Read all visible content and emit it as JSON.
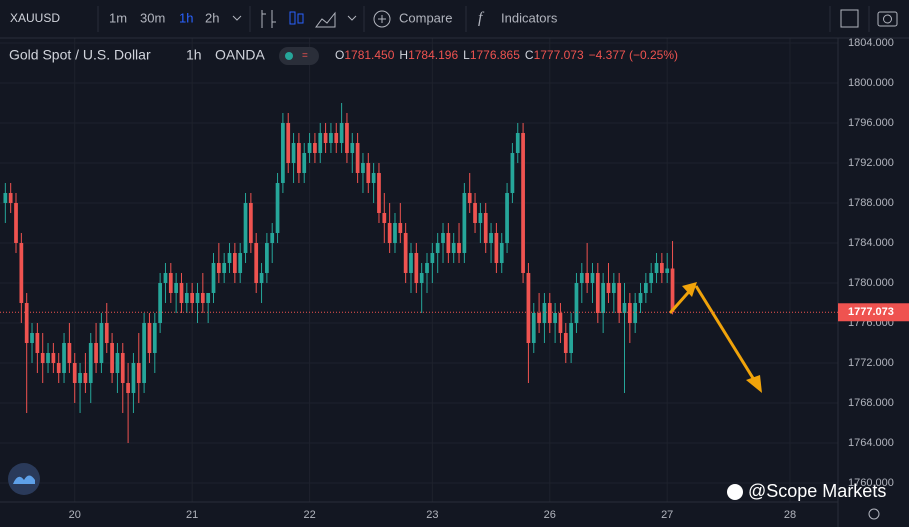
{
  "toolbar": {
    "symbol": "XAUUSD",
    "intervals": [
      "1m",
      "30m",
      "1h",
      "2h"
    ],
    "compare": "Compare",
    "indicators": "Indicators"
  },
  "legend": {
    "title": "Gold Spot / U.S. Dollar",
    "interval": "1h",
    "source": "OANDA",
    "ohlc_letters": [
      "O",
      "H",
      "L",
      "C"
    ],
    "ohlc_values": [
      "1781.450",
      "1784.196",
      "1776.865",
      "1777.073"
    ],
    "change": "−4.377 (−0.25%)"
  },
  "watermark": "@Scope Markets",
  "chart_data": {
    "type": "candlestick",
    "up_color": "#26a69a",
    "down_color": "#ef5350",
    "xlim": [
      -1,
      156
    ],
    "xticks": [
      {
        "value": 13,
        "label": "20"
      },
      {
        "value": 35,
        "label": "21"
      },
      {
        "value": 57,
        "label": "22"
      },
      {
        "value": 80,
        "label": "23"
      },
      {
        "value": 102,
        "label": "26"
      },
      {
        "value": 124,
        "label": "27"
      },
      {
        "value": 147,
        "label": "28"
      }
    ],
    "ylim": [
      1758.1,
      1804.5
    ],
    "yticks": [
      {
        "value": 1760,
        "label": "1760.000"
      },
      {
        "value": 1764,
        "label": "1764.000"
      },
      {
        "value": 1768,
        "label": "1768.000"
      },
      {
        "value": 1772,
        "label": "1772.000"
      },
      {
        "value": 1776,
        "label": "1776.000"
      },
      {
        "value": 1780,
        "label": "1780.000"
      },
      {
        "value": 1784,
        "label": "1784.000"
      },
      {
        "value": 1788,
        "label": "1788.000"
      },
      {
        "value": 1792,
        "label": "1792.000"
      },
      {
        "value": 1796,
        "label": "1796.000"
      },
      {
        "value": 1800,
        "label": "1800.000"
      },
      {
        "value": 1804,
        "label": "1804.000"
      }
    ],
    "grid": true,
    "last_price": {
      "value": 1777.073,
      "label": "1777.073"
    },
    "candles": [
      [
        1788,
        1790,
        1786,
        1789
      ],
      [
        1789,
        1790,
        1787,
        1788
      ],
      [
        1788,
        1789,
        1783,
        1784
      ],
      [
        1784,
        1785,
        1776,
        1778
      ],
      [
        1778,
        1779,
        1767,
        1774
      ],
      [
        1774,
        1776,
        1772,
        1775
      ],
      [
        1775,
        1776,
        1771,
        1773
      ],
      [
        1773,
        1775,
        1770,
        1772
      ],
      [
        1772,
        1774,
        1771,
        1773
      ],
      [
        1773,
        1774,
        1771,
        1772
      ],
      [
        1772,
        1773,
        1770,
        1771
      ],
      [
        1771,
        1775,
        1770,
        1774
      ],
      [
        1774,
        1776,
        1771,
        1772
      ],
      [
        1772,
        1773,
        1768,
        1770
      ],
      [
        1770,
        1772,
        1767,
        1771
      ],
      [
        1771,
        1773,
        1769,
        1770
      ],
      [
        1770,
        1775,
        1768,
        1774
      ],
      [
        1774,
        1776,
        1771,
        1772
      ],
      [
        1772,
        1777,
        1771,
        1776
      ],
      [
        1776,
        1778,
        1773,
        1774
      ],
      [
        1774,
        1775,
        1770,
        1771
      ],
      [
        1771,
        1774,
        1769,
        1773
      ],
      [
        1773,
        1774,
        1767,
        1770
      ],
      [
        1770,
        1772,
        1764,
        1769
      ],
      [
        1769,
        1773,
        1767,
        1772
      ],
      [
        1772,
        1775,
        1768,
        1770
      ],
      [
        1770,
        1777,
        1769,
        1776
      ],
      [
        1776,
        1777,
        1772,
        1773
      ],
      [
        1773,
        1777,
        1771,
        1776
      ],
      [
        1776,
        1781,
        1775,
        1780
      ],
      [
        1780,
        1782,
        1778,
        1781
      ],
      [
        1781,
        1782,
        1778,
        1779
      ],
      [
        1779,
        1781,
        1777,
        1780
      ],
      [
        1780,
        1781,
        1777,
        1778
      ],
      [
        1778,
        1780,
        1777,
        1779
      ],
      [
        1779,
        1780,
        1777,
        1778
      ],
      [
        1778,
        1780,
        1776,
        1779
      ],
      [
        1779,
        1781,
        1777,
        1778
      ],
      [
        1778,
        1779,
        1776,
        1779
      ],
      [
        1779,
        1783,
        1778,
        1782
      ],
      [
        1782,
        1784,
        1780,
        1781
      ],
      [
        1781,
        1783,
        1780,
        1782
      ],
      [
        1782,
        1784,
        1781,
        1783
      ],
      [
        1783,
        1784,
        1780,
        1781
      ],
      [
        1781,
        1784,
        1780,
        1783
      ],
      [
        1783,
        1789,
        1782,
        1788
      ],
      [
        1788,
        1789,
        1783,
        1784
      ],
      [
        1784,
        1785,
        1779,
        1780
      ],
      [
        1780,
        1782,
        1778,
        1781
      ],
      [
        1781,
        1785,
        1780,
        1784
      ],
      [
        1784,
        1786,
        1782,
        1785
      ],
      [
        1785,
        1791,
        1784,
        1790
      ],
      [
        1790,
        1797,
        1789,
        1796
      ],
      [
        1796,
        1797,
        1791,
        1792
      ],
      [
        1792,
        1795,
        1790,
        1794
      ],
      [
        1794,
        1795,
        1790,
        1791
      ],
      [
        1791,
        1794,
        1790,
        1793
      ],
      [
        1793,
        1795,
        1792,
        1794
      ],
      [
        1794,
        1795,
        1792,
        1793
      ],
      [
        1793,
        1796,
        1792,
        1795
      ],
      [
        1795,
        1796,
        1793,
        1794
      ],
      [
        1794,
        1796,
        1793,
        1795
      ],
      [
        1795,
        1796,
        1793,
        1794
      ],
      [
        1794,
        1798,
        1793,
        1796
      ],
      [
        1796,
        1797,
        1792,
        1793
      ],
      [
        1793,
        1795,
        1791,
        1794
      ],
      [
        1794,
        1795,
        1790,
        1791
      ],
      [
        1791,
        1793,
        1789,
        1792
      ],
      [
        1792,
        1793,
        1789,
        1790
      ],
      [
        1790,
        1792,
        1788,
        1791
      ],
      [
        1791,
        1792,
        1786,
        1787
      ],
      [
        1787,
        1789,
        1784,
        1786
      ],
      [
        1786,
        1788,
        1783,
        1784
      ],
      [
        1784,
        1787,
        1783,
        1786
      ],
      [
        1786,
        1788,
        1784,
        1785
      ],
      [
        1785,
        1786,
        1780,
        1781
      ],
      [
        1781,
        1784,
        1779,
        1783
      ],
      [
        1783,
        1784,
        1779,
        1780
      ],
      [
        1780,
        1782,
        1777,
        1781
      ],
      [
        1781,
        1783,
        1779,
        1782
      ],
      [
        1782,
        1784,
        1780,
        1783
      ],
      [
        1783,
        1785,
        1781,
        1784
      ],
      [
        1784,
        1786,
        1782,
        1785
      ],
      [
        1785,
        1786,
        1782,
        1783
      ],
      [
        1783,
        1785,
        1782,
        1784
      ],
      [
        1784,
        1786,
        1782,
        1783
      ],
      [
        1783,
        1790,
        1782,
        1789
      ],
      [
        1789,
        1791,
        1787,
        1788
      ],
      [
        1788,
        1789,
        1785,
        1786
      ],
      [
        1786,
        1788,
        1784,
        1787
      ],
      [
        1787,
        1788,
        1783,
        1784
      ],
      [
        1784,
        1786,
        1782,
        1785
      ],
      [
        1785,
        1786,
        1781,
        1782
      ],
      [
        1782,
        1785,
        1781,
        1784
      ],
      [
        1784,
        1790,
        1783,
        1789
      ],
      [
        1789,
        1794,
        1788,
        1793
      ],
      [
        1793,
        1796,
        1792,
        1795
      ],
      [
        1795,
        1796,
        1780,
        1781
      ],
      [
        1781,
        1782,
        1770,
        1774
      ],
      [
        1774,
        1778,
        1773,
        1777
      ],
      [
        1777,
        1779,
        1775,
        1776
      ],
      [
        1776,
        1779,
        1774,
        1778
      ],
      [
        1778,
        1779,
        1775,
        1776
      ],
      [
        1776,
        1778,
        1774,
        1777
      ],
      [
        1777,
        1778,
        1774,
        1775
      ],
      [
        1775,
        1776,
        1772,
        1773
      ],
      [
        1773,
        1777,
        1772,
        1776
      ],
      [
        1776,
        1781,
        1775,
        1780
      ],
      [
        1780,
        1782,
        1778,
        1781
      ],
      [
        1781,
        1784,
        1779,
        1780
      ],
      [
        1780,
        1782,
        1778,
        1781
      ],
      [
        1781,
        1782,
        1776,
        1777
      ],
      [
        1777,
        1781,
        1775,
        1780
      ],
      [
        1780,
        1782,
        1778,
        1779
      ],
      [
        1779,
        1781,
        1777,
        1780
      ],
      [
        1780,
        1781,
        1776,
        1777
      ],
      [
        1777,
        1780,
        1769,
        1778
      ],
      [
        1778,
        1779,
        1774,
        1776
      ],
      [
        1776,
        1779,
        1775,
        1778
      ],
      [
        1778,
        1780,
        1777,
        1779
      ],
      [
        1779,
        1781,
        1778,
        1780
      ],
      [
        1780,
        1782,
        1779,
        1781
      ],
      [
        1781,
        1783,
        1780,
        1782
      ],
      [
        1782,
        1783,
        1780,
        1781
      ],
      [
        1781,
        1783,
        1780,
        1781.45
      ],
      [
        1781.45,
        1784.196,
        1776.865,
        1777.073
      ]
    ]
  }
}
